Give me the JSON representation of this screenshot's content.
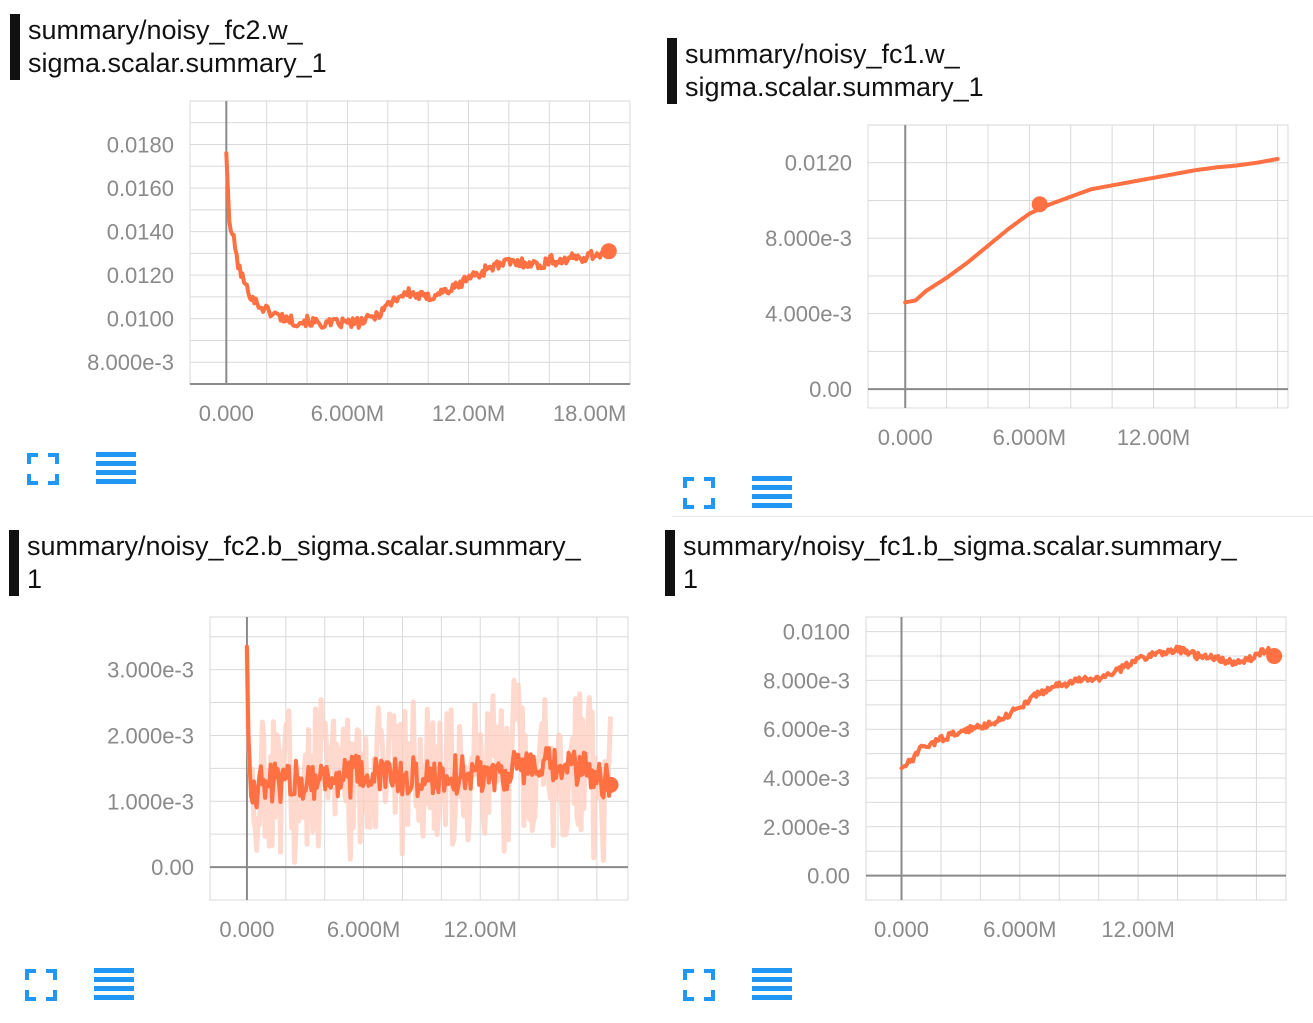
{
  "colors": {
    "accent": "#ff7043",
    "accent_light": "#ffccbc",
    "grid": "#d9d9d9",
    "axis": "#8a8a8a",
    "icon": "#2196f3"
  },
  "icons": [
    "fullscreen-icon",
    "data-list-icon"
  ],
  "chart_data": [
    {
      "type": "line",
      "title_line1": "summary/noisy_fc2.w_",
      "title_line2": "sigma.scalar.summary_1",
      "xlim": [
        -1800000,
        20000000
      ],
      "ylim": [
        7000,
        20000
      ],
      "x_ticks": [
        0,
        6000000,
        12000000,
        18000000
      ],
      "x_tick_labels": [
        "0.000",
        "6.000M",
        "12.00M",
        "18.00M"
      ],
      "y_ticks": [
        8000,
        10000,
        12000,
        14000,
        16000,
        18000
      ],
      "y_tick_labels": [
        "8.000e-3",
        "0.0100",
        "0.0120",
        "0.0140",
        "0.0160",
        "0.0180"
      ],
      "y_scale_note": "values in units of 1e-6",
      "x": [
        0,
        150000,
        350000,
        600000,
        1000000,
        1500000,
        2000000,
        2500000,
        3000000,
        3500000,
        4000000,
        4500000,
        5000000,
        5500000,
        6000000,
        6500000,
        7000000,
        7500000,
        8000000,
        8500000,
        9000000,
        9500000,
        10000000,
        10500000,
        11000000,
        11500000,
        12000000,
        12500000,
        13000000,
        13500000,
        14000000,
        14500000,
        15000000,
        15500000,
        16000000,
        16500000,
        17000000,
        17500000,
        18000000,
        18500000,
        18950000
      ],
      "values": [
        17600,
        14400,
        13700,
        12400,
        11400,
        10700,
        10400,
        10150,
        10000,
        9850,
        9900,
        9800,
        9750,
        9800,
        9800,
        9800,
        9950,
        10200,
        10650,
        11000,
        11200,
        11050,
        10950,
        11200,
        11300,
        11500,
        11950,
        12000,
        12400,
        12450,
        12600,
        12550,
        12600,
        12400,
        12700,
        12650,
        12750,
        12800,
        12900,
        13000,
        13100
      ],
      "noise": 0.12,
      "marker_at_end": true,
      "show_light_band": false
    },
    {
      "type": "line",
      "title_line1": "summary/noisy_fc1.w_",
      "title_line2": "sigma.scalar.summary_1",
      "xlim": [
        -1800000,
        18500000
      ],
      "ylim": [
        -1000,
        14000
      ],
      "x_ticks": [
        0,
        6000000,
        12000000
      ],
      "x_tick_labels": [
        "0.000",
        "6.000M",
        "12.00M"
      ],
      "y_ticks": [
        0,
        4000,
        8000,
        12000
      ],
      "y_tick_labels": [
        "0.00",
        "4.000e-3",
        "8.000e-3",
        "0.0120"
      ],
      "y_scale_note": "values in units of 1e-6",
      "x": [
        0,
        500000,
        1000000,
        2000000,
        3000000,
        4000000,
        5000000,
        6000000,
        7000000,
        8000000,
        9000000,
        10000000,
        11000000,
        12000000,
        13000000,
        14000000,
        15000000,
        16000000,
        17000000,
        18000000
      ],
      "values": [
        4600,
        4700,
        5200,
        5900,
        6700,
        7600,
        8500,
        9300,
        9800,
        10200,
        10600,
        10800,
        11000,
        11200,
        11400,
        11600,
        11750,
        11850,
        12000,
        12200
      ],
      "noise": 0,
      "marker_x": 6500000,
      "marker_y": 9800,
      "marker_at_end": false,
      "show_light_band": false
    },
    {
      "type": "line",
      "title_line1": "summary/noisy_fc2.b_sigma.scalar.summary_",
      "title_line2": "1",
      "xlim": [
        -1900000,
        19600000
      ],
      "ylim": [
        -500,
        3800
      ],
      "x_ticks": [
        0,
        6000000,
        12000000
      ],
      "x_tick_labels": [
        "0.000",
        "6.000M",
        "12.00M"
      ],
      "y_ticks": [
        0,
        1000,
        2000,
        3000
      ],
      "y_tick_labels": [
        "0.00",
        "1.000e-3",
        "2.000e-3",
        "3.000e-3"
      ],
      "y_scale_note": "values in units of 1e-6",
      "x": [
        0,
        80000,
        200000,
        1000000,
        2000000,
        3000000,
        4000000,
        5000000,
        6000000,
        7000000,
        8000000,
        9000000,
        10000000,
        11000000,
        12000000,
        13000000,
        14000000,
        15000000,
        16000000,
        17000000,
        18000000,
        18700000
      ],
      "values": [
        3350,
        1900,
        1200,
        1250,
        1300,
        1350,
        1350,
        1350,
        1400,
        1400,
        1350,
        1350,
        1400,
        1400,
        1450,
        1450,
        1500,
        1500,
        1500,
        1500,
        1450,
        1250
      ],
      "noise": 0.32,
      "marker_at_end": true,
      "show_light_band": true
    },
    {
      "type": "line",
      "title_line1": "summary/noisy_fc1.b_sigma.scalar.summary_",
      "title_line2": "1",
      "xlim": [
        -1800000,
        19500000
      ],
      "ylim": [
        -1000,
        10600
      ],
      "x_ticks": [
        0,
        6000000,
        12000000
      ],
      "x_tick_labels": [
        "0.000",
        "6.000M",
        "12.00M"
      ],
      "y_ticks": [
        0,
        2000,
        4000,
        6000,
        8000,
        10000
      ],
      "y_tick_labels": [
        "0.00",
        "2.000e-3",
        "4.000e-3",
        "6.000e-3",
        "8.000e-3",
        "0.0100"
      ],
      "y_scale_note": "values in units of 1e-6",
      "x": [
        0,
        500000,
        1000000,
        2000000,
        3000000,
        4000000,
        5000000,
        6000000,
        7000000,
        8000000,
        9000000,
        10000000,
        11000000,
        12000000,
        13000000,
        14000000,
        15000000,
        16000000,
        17000000,
        18000000,
        18500000,
        18900000
      ],
      "values": [
        4400,
        4700,
        5200,
        5600,
        5900,
        6100,
        6400,
        6900,
        7500,
        7800,
        8000,
        8100,
        8400,
        8900,
        9100,
        9300,
        9000,
        8900,
        8700,
        9000,
        9300,
        9000
      ],
      "noise": 0.07,
      "marker_at_end": true,
      "show_light_band": false
    }
  ]
}
